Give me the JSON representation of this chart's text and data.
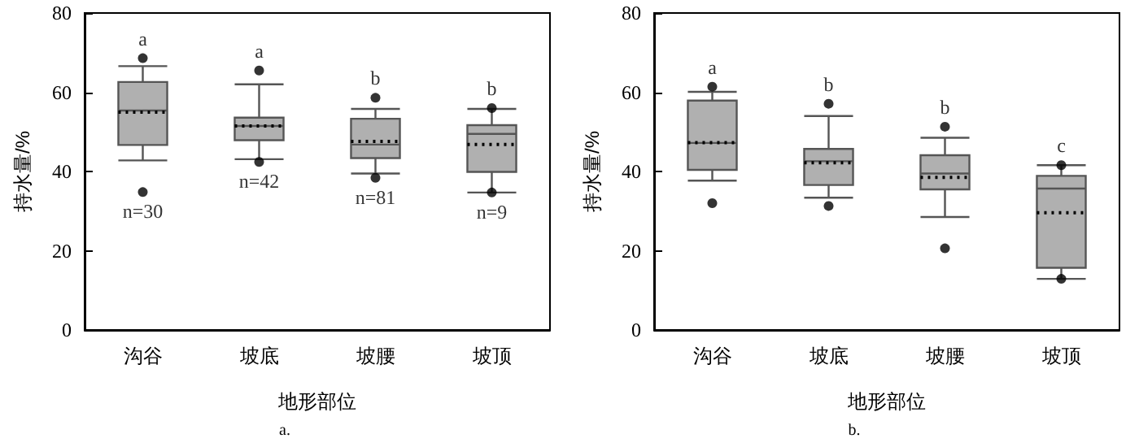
{
  "chart_data": [
    {
      "type": "box",
      "title": "a.",
      "xlabel": "地形部位",
      "ylabel": "持水量/%",
      "categories": [
        "沟谷",
        "坡底",
        "坡腰",
        "坡顶"
      ],
      "color": "#b0b0b0",
      "ylim": [
        0,
        80
      ],
      "yticks": [
        0,
        20,
        40,
        60,
        80
      ],
      "grid": false,
      "marker": "circle",
      "line_style": "dotted",
      "boxes": [
        {
          "low": 42.8,
          "q1": 46.7,
          "median": 55.4,
          "q3": 62.6,
          "high": 66.6,
          "mean": 55,
          "outliers": [
            68.6,
            34.8
          ]
        },
        {
          "low": 43.1,
          "q1": 47.9,
          "median": 51.5,
          "q3": 53.6,
          "high": 62,
          "mean": 51.5,
          "outliers": [
            65.5,
            42.4
          ]
        },
        {
          "low": 39.5,
          "q1": 43.4,
          "median": 46.8,
          "q3": 53.3,
          "high": 55.8,
          "mean": 47.6,
          "outliers": [
            58.6,
            38.4
          ]
        },
        {
          "low": 34.7,
          "q1": 39.9,
          "median": 49.5,
          "q3": 51.7,
          "high": 55.8,
          "mean": 46.8,
          "outliers": [
            56,
            34.7
          ]
        }
      ],
      "annotations": [
        "a",
        "a",
        "b",
        "b",
        "n=30",
        "n=42",
        "n=81",
        "n=9"
      ]
    },
    {
      "type": "box",
      "title": "b.",
      "xlabel": "地形部位",
      "ylabel": "持水量/%",
      "categories": [
        "沟谷",
        "坡底",
        "坡腰",
        "坡顶"
      ],
      "color": "#b0b0b0",
      "ylim": [
        0,
        80
      ],
      "yticks": [
        0,
        20,
        40,
        60,
        80
      ],
      "grid": false,
      "marker": "circle",
      "line_style": "dotted",
      "boxes": [
        {
          "low": 37.7,
          "q1": 40.4,
          "median": 47.2,
          "q3": 57.9,
          "high": 60.1,
          "mean": 47.3,
          "outliers": [
            61.4,
            32
          ]
        },
        {
          "low": 33.4,
          "q1": 36.6,
          "median": 42.6,
          "q3": 45.7,
          "high": 54,
          "mean": 42.2,
          "outliers": [
            57.1,
            31.3
          ]
        },
        {
          "low": 28.5,
          "q1": 35.5,
          "median": 39.5,
          "q3": 44.1,
          "high": 48.5,
          "mean": 38.5,
          "outliers": [
            51.3,
            20.6
          ]
        },
        {
          "low": 12.9,
          "q1": 15.7,
          "median": 35.7,
          "q3": 38.9,
          "high": 41.6,
          "mean": 29.6,
          "outliers": [
            41.6,
            12.9
          ]
        }
      ],
      "annotations": [
        "a",
        "b",
        "b",
        "c"
      ]
    }
  ]
}
